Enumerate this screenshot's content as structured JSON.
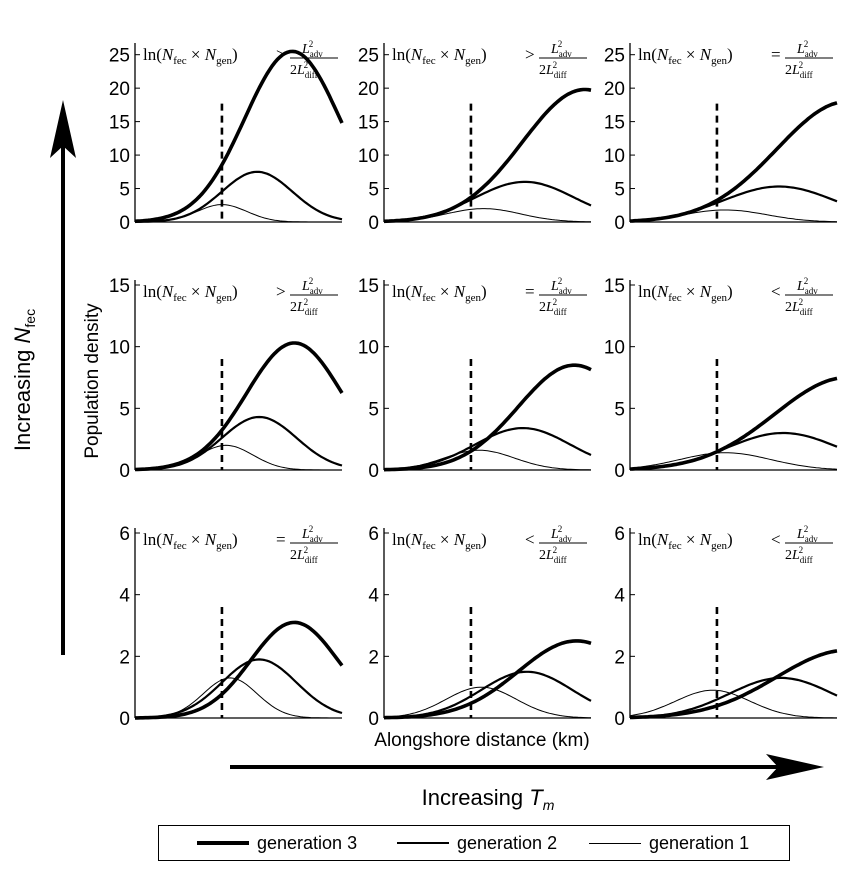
{
  "figure": {
    "y_arrow_label": "Increasing ",
    "y_arrow_sym": "N",
    "y_arrow_sub": "fec",
    "x_arrow_label": "Increasing ",
    "x_arrow_sym": "T",
    "x_arrow_sub": "m",
    "ylabel": "Population density",
    "xlabel": "Alongshore distance (km)"
  },
  "legend": [
    {
      "label": "generation 3"
    },
    {
      "label": "generation 2"
    },
    {
      "label": "generation 1"
    }
  ],
  "chart_data": [
    {
      "type": "line",
      "row": 0,
      "col": 0,
      "ylim": [
        0,
        26
      ],
      "yticks": [
        0,
        5,
        10,
        15,
        20,
        25
      ],
      "relation": ">",
      "series": [
        {
          "name": "generation 3",
          "peak": 25.5,
          "center": 0.76,
          "width": 0.23
        },
        {
          "name": "generation 2",
          "peak": 7.5,
          "center": 0.59,
          "width": 0.17
        },
        {
          "name": "generation 1",
          "peak": 2.6,
          "center": 0.42,
          "width": 0.12
        }
      ]
    },
    {
      "type": "line",
      "row": 0,
      "col": 1,
      "ylim": [
        0,
        26
      ],
      "yticks": [
        0,
        5,
        10,
        15,
        20,
        25
      ],
      "relation": ">",
      "series": [
        {
          "name": "generation 3",
          "peak": 19.8,
          "center": 0.97,
          "width": 0.3
        },
        {
          "name": "generation 2",
          "peak": 6.0,
          "center": 0.68,
          "width": 0.24
        },
        {
          "name": "generation 1",
          "peak": 2.0,
          "center": 0.48,
          "width": 0.18
        }
      ]
    },
    {
      "type": "line",
      "row": 0,
      "col": 2,
      "ylim": [
        0,
        26
      ],
      "yticks": [
        0,
        5,
        10,
        15,
        20,
        25
      ],
      "relation": "=",
      "series": [
        {
          "name": "generation 3",
          "peak": 18.0,
          "center": 1.05,
          "width": 0.34
        },
        {
          "name": "generation 2",
          "peak": 5.3,
          "center": 0.72,
          "width": 0.27
        },
        {
          "name": "generation 1",
          "peak": 1.8,
          "center": 0.46,
          "width": 0.2
        }
      ]
    },
    {
      "type": "line",
      "row": 1,
      "col": 0,
      "ylim": [
        0,
        15
      ],
      "yticks": [
        0,
        5,
        10,
        15
      ],
      "relation": ">",
      "series": [
        {
          "name": "generation 3",
          "peak": 10.3,
          "center": 0.77,
          "width": 0.23
        },
        {
          "name": "generation 2",
          "peak": 4.3,
          "center": 0.6,
          "width": 0.18
        },
        {
          "name": "generation 1",
          "peak": 2.0,
          "center": 0.44,
          "width": 0.13
        }
      ]
    },
    {
      "type": "line",
      "row": 1,
      "col": 1,
      "ylim": [
        0,
        15
      ],
      "yticks": [
        0,
        5,
        10,
        15
      ],
      "relation": "=",
      "series": [
        {
          "name": "generation 3",
          "peak": 8.5,
          "center": 0.92,
          "width": 0.27
        },
        {
          "name": "generation 2",
          "peak": 3.4,
          "center": 0.67,
          "width": 0.23
        },
        {
          "name": "generation 1",
          "peak": 1.6,
          "center": 0.46,
          "width": 0.17
        }
      ]
    },
    {
      "type": "line",
      "row": 1,
      "col": 2,
      "ylim": [
        0,
        15
      ],
      "yticks": [
        0,
        5,
        10,
        15
      ],
      "relation": "<",
      "series": [
        {
          "name": "generation 3",
          "peak": 7.5,
          "center": 1.05,
          "width": 0.35
        },
        {
          "name": "generation 2",
          "peak": 3.0,
          "center": 0.74,
          "width": 0.27
        },
        {
          "name": "generation 1",
          "peak": 1.4,
          "center": 0.46,
          "width": 0.22
        }
      ]
    },
    {
      "type": "line",
      "row": 2,
      "col": 0,
      "ylim": [
        0,
        6
      ],
      "yticks": [
        0,
        2,
        4,
        6
      ],
      "relation": "=",
      "series": [
        {
          "name": "generation 3",
          "peak": 3.1,
          "center": 0.77,
          "width": 0.21
        },
        {
          "name": "generation 2",
          "peak": 1.9,
          "center": 0.6,
          "width": 0.18
        },
        {
          "name": "generation 1",
          "peak": 1.3,
          "center": 0.46,
          "width": 0.13
        }
      ]
    },
    {
      "type": "line",
      "row": 2,
      "col": 1,
      "ylim": [
        0,
        6
      ],
      "yticks": [
        0,
        2,
        4,
        6
      ],
      "relation": "<",
      "series": [
        {
          "name": "generation 3",
          "peak": 2.5,
          "center": 0.93,
          "width": 0.28
        },
        {
          "name": "generation 2",
          "peak": 1.5,
          "center": 0.69,
          "width": 0.22
        },
        {
          "name": "generation 1",
          "peak": 1.0,
          "center": 0.47,
          "width": 0.17
        }
      ]
    },
    {
      "type": "line",
      "row": 2,
      "col": 2,
      "ylim": [
        0,
        6
      ],
      "yticks": [
        0,
        2,
        4,
        6
      ],
      "relation": "<",
      "series": [
        {
          "name": "generation 3",
          "peak": 2.2,
          "center": 1.05,
          "width": 0.34
        },
        {
          "name": "generation 2",
          "peak": 1.3,
          "center": 0.73,
          "width": 0.25
        },
        {
          "name": "generation 1",
          "peak": 0.9,
          "center": 0.4,
          "width": 0.18
        }
      ]
    }
  ]
}
